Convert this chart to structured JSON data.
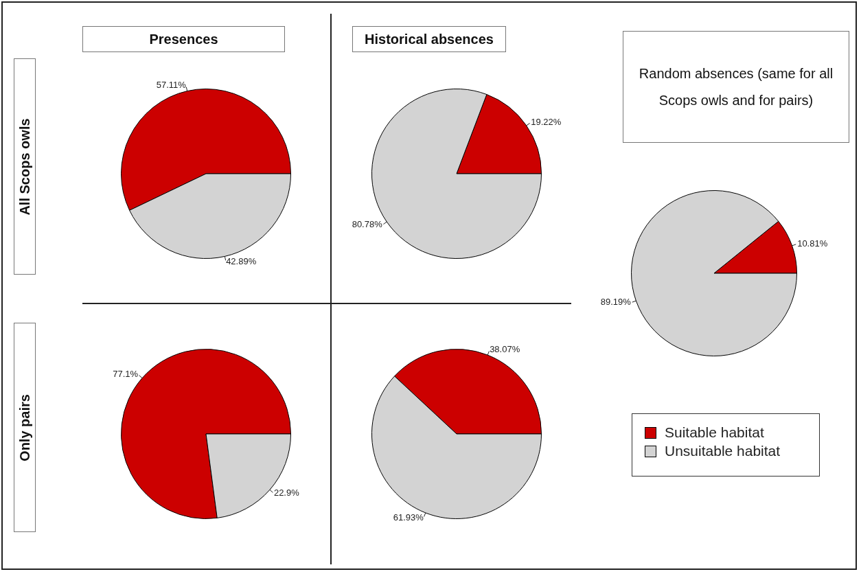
{
  "chart_data": [
    {
      "type": "pie",
      "title": "Presences",
      "ylabel": "All Scops owls",
      "categories": [
        null,
        null
      ],
      "values": [
        57.11,
        42.89
      ],
      "colors": [
        "#cc0000",
        "#d3d3d3"
      ],
      "value_labels": [
        "57.11%",
        "42.89%"
      ]
    },
    {
      "type": "pie",
      "title": "Historical absences",
      "categories": [
        null,
        null
      ],
      "values": [
        19.22,
        80.78
      ],
      "colors": [
        "#cc0000",
        "#d3d3d3"
      ],
      "value_labels": [
        "19.22%",
        "80.78%"
      ]
    },
    {
      "type": "pie",
      "title": "Random absences (same for all Scops owls and for pairs)",
      "categories": [
        "Suitable habitat",
        "Unsuitable habitat"
      ],
      "values": [
        10.81,
        89.19
      ],
      "colors": [
        "#cc0000",
        "#d3d3d3"
      ],
      "value_labels": [
        "10.81%",
        "89.19%"
      ],
      "legend": "bottom"
    },
    {
      "type": "pie",
      "ylabel": "Only pairs",
      "categories": [
        null,
        null
      ],
      "values": [
        77.1,
        22.9
      ],
      "colors": [
        "#cc0000",
        "#d3d3d3"
      ],
      "value_labels": [
        "77.1%",
        "22.9%"
      ]
    },
    {
      "type": "pie",
      "categories": [
        null,
        null
      ],
      "values": [
        38.07,
        61.93
      ],
      "colors": [
        "#cc0000",
        "#d3d3d3"
      ],
      "value_labels": [
        "38.07%",
        "61.93%"
      ]
    }
  ]
}
